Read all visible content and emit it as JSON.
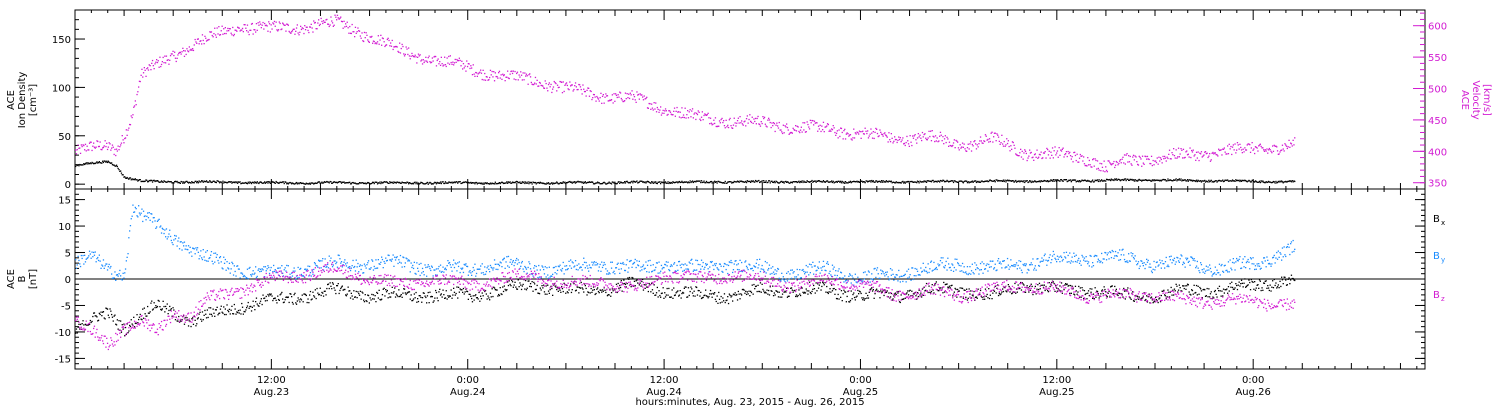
{
  "colors": {
    "black": "#000000",
    "blue": "#1a8cff",
    "magenta": "#d21bd2"
  },
  "x_axis": {
    "label": "hours:minutes, Aug. 23, 2015 - Aug. 26, 2015",
    "ticks": [
      {
        "hour": 12,
        "time": "12:00",
        "date": "Aug.23"
      },
      {
        "hour": 24,
        "time": "0:00",
        "date": "Aug.24"
      },
      {
        "hour": 36,
        "time": "12:00",
        "date": "Aug.24"
      },
      {
        "hour": 48,
        "time": "0:00",
        "date": "Aug.25"
      },
      {
        "hour": 60,
        "time": "12:00",
        "date": "Aug.25"
      },
      {
        "hour": 72,
        "time": "0:00",
        "date": "Aug.26"
      }
    ]
  },
  "chart_data": [
    {
      "type": "scatter",
      "panel": "top",
      "x_unit": "hours since Aug. 23 00:00",
      "xlim": [
        0,
        82.5
      ],
      "left_axis": {
        "label_lines": [
          "ACE",
          "Ion Density",
          "[cm⁻³]"
        ],
        "ylim": [
          -5,
          180
        ],
        "ticks": [
          "0",
          "50",
          "100",
          "150"
        ]
      },
      "right_axis": {
        "label_lines": [
          "ACE",
          "Velocity",
          "[km/s]"
        ],
        "ylim": [
          340,
          625
        ],
        "ticks": [
          "350",
          "400",
          "450",
          "500",
          "550",
          "600"
        ]
      },
      "series": [
        {
          "key": "density",
          "axis": "left",
          "color": "black",
          "x": [
            0,
            1,
            2,
            2.5,
            3,
            4,
            5,
            8,
            12,
            20,
            30,
            40,
            50,
            60,
            66,
            70,
            74.5
          ],
          "y": [
            20,
            22,
            24,
            20,
            8,
            4,
            3,
            3,
            2,
            2,
            2,
            3,
            3,
            4,
            5,
            4,
            3
          ]
        },
        {
          "key": "velocity",
          "axis": "right",
          "color": "magenta",
          "x": [
            0,
            1,
            2,
            2.5,
            3,
            3.5,
            4,
            6,
            8,
            9,
            10,
            12,
            14,
            16,
            18,
            20,
            22,
            24,
            26,
            28,
            30,
            32,
            34,
            36,
            38,
            40,
            42,
            44,
            46,
            48,
            50,
            52,
            54,
            56,
            58,
            60,
            62,
            63,
            64,
            66,
            68,
            70,
            72,
            74.5
          ],
          "y": [
            400,
            405,
            410,
            405,
            430,
            460,
            520,
            555,
            580,
            590,
            600,
            595,
            600,
            605,
            585,
            560,
            545,
            535,
            520,
            515,
            500,
            490,
            485,
            470,
            455,
            450,
            445,
            440,
            435,
            430,
            420,
            425,
            410,
            420,
            400,
            395,
            390,
            375,
            385,
            390,
            395,
            400,
            405,
            410
          ]
        }
      ]
    },
    {
      "type": "scatter",
      "panel": "bottom",
      "x_unit": "hours since Aug. 23 00:00",
      "xlim": [
        0,
        82.5
      ],
      "left_axis": {
        "label_lines": [
          "ACE",
          "B",
          "[nT]"
        ],
        "ylim": [
          -17,
          17
        ],
        "ticks": [
          "15",
          "10",
          "5",
          "0",
          "-5",
          "-10",
          "-15"
        ]
      },
      "zero_line": true,
      "legend": {
        "placement": "right",
        "entries": [
          {
            "base": "B",
            "sub": "x",
            "color": "black"
          },
          {
            "base": "B",
            "sub": "y",
            "color": "blue"
          },
          {
            "base": "B",
            "sub": "z",
            "color": "magenta"
          }
        ]
      },
      "series": [
        {
          "key": "Bx",
          "color": "black",
          "x": [
            0,
            1,
            2,
            3,
            4,
            5,
            6,
            7,
            8,
            10,
            12,
            14,
            16,
            18,
            20,
            22,
            24,
            26,
            28,
            30,
            32,
            34,
            36,
            38,
            40,
            42,
            44,
            46,
            48,
            50,
            52,
            54,
            56,
            58,
            60,
            62,
            64,
            66,
            68,
            70,
            72,
            74.5
          ],
          "y": [
            -10,
            -8,
            -6,
            -9,
            -7,
            -5,
            -6,
            -8,
            -7,
            -5,
            -4,
            -3,
            -2,
            -3,
            -3,
            -3,
            -3,
            -2,
            -1,
            -2,
            -2,
            -1,
            -2,
            -3,
            -3,
            -2,
            -2,
            -2,
            -3,
            -3,
            -2,
            -2,
            -3,
            -1,
            -2,
            -2,
            -3,
            -3,
            -2,
            -2,
            -1,
            0
          ]
        },
        {
          "key": "By",
          "color": "blue",
          "x": [
            0,
            1,
            2,
            3,
            3.5,
            4,
            5,
            6,
            7,
            8,
            9,
            10,
            12,
            14,
            16,
            18,
            20,
            22,
            24,
            26,
            28,
            30,
            32,
            34,
            36,
            38,
            40,
            42,
            44,
            46,
            48,
            50,
            52,
            54,
            56,
            58,
            60,
            62,
            64,
            66,
            68,
            70,
            72,
            74.5
          ],
          "y": [
            3,
            4,
            2,
            1,
            14,
            12,
            10,
            8,
            6,
            4,
            3,
            2,
            1,
            2,
            3,
            3,
            3,
            2,
            2,
            3,
            2,
            2,
            3,
            2,
            3,
            2,
            3,
            2,
            1,
            2,
            0,
            1,
            2,
            3,
            2,
            3,
            4,
            4,
            4,
            3,
            3,
            2,
            3,
            6
          ]
        },
        {
          "key": "Bz",
          "color": "magenta",
          "x": [
            0,
            1,
            2,
            3,
            4,
            5,
            6,
            7,
            8,
            10,
            12,
            14,
            16,
            18,
            20,
            22,
            24,
            26,
            28,
            30,
            32,
            34,
            36,
            38,
            40,
            42,
            44,
            46,
            48,
            50,
            52,
            54,
            56,
            58,
            60,
            62,
            64,
            66,
            68,
            70,
            72,
            74.5
          ],
          "y": [
            -8,
            -10,
            -12,
            -9,
            -8,
            -10,
            -6,
            -7,
            -4,
            -2,
            0,
            1,
            2,
            0,
            -1,
            0,
            -1,
            0,
            1,
            -1,
            0,
            -2,
            1,
            0,
            1,
            0,
            -1,
            0,
            -1,
            -3,
            -2,
            -3,
            -2,
            -1,
            -2,
            -3,
            -3,
            -3,
            -4,
            -4,
            -4,
            -5
          ]
        }
      ]
    }
  ]
}
